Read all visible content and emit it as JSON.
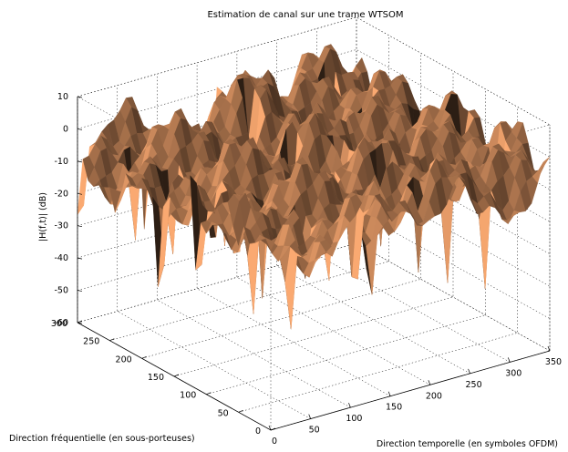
{
  "chart_data": {
    "type": "surface",
    "title": "Estimation de canal sur une trame WTSOM",
    "xlabel": "Direction temporelle (en symboles OFDM)",
    "ylabel": "Direction fréquentielle (en sous-porteuses)",
    "zlabel": "|H(f,t)| (dB)",
    "xlim": [
      0,
      350
    ],
    "ylim": [
      0,
      300
    ],
    "zlim": [
      -60,
      10
    ],
    "xticks": [
      0,
      50,
      100,
      150,
      200,
      250,
      300,
      350
    ],
    "yticks": [
      0,
      50,
      100,
      150,
      200,
      250,
      300
    ],
    "zticks": [
      10,
      0,
      -10,
      -20,
      -30,
      -40,
      -50,
      -60
    ],
    "grid": true,
    "surface_color": "#c8875a",
    "highlight_color": "#f0b68a",
    "shadow_color": "#4a2110"
  }
}
